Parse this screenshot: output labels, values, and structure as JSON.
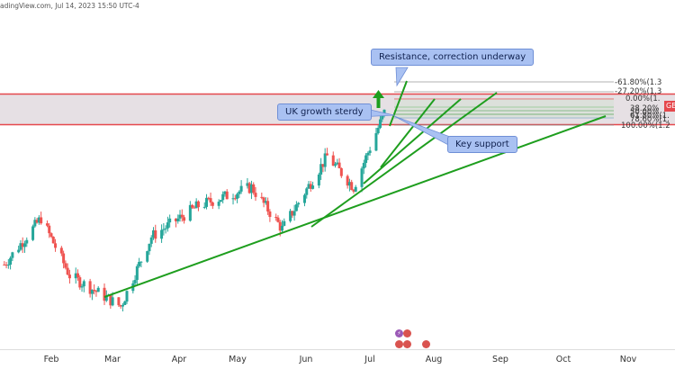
{
  "header": {
    "source_text": "adingView.com, Jul 14, 2023 15:50 UTC-4"
  },
  "annotations": {
    "resistance": "Resistance, correction underway",
    "uk_growth": "UK growth sterdy",
    "key_support": "Key support"
  },
  "price_badge": "GB",
  "events": [
    {
      "name": "lightning",
      "glyph": "⚡",
      "color": "#9b59b6"
    },
    {
      "name": "flag-uk",
      "glyph": "",
      "color": "#d9534f"
    },
    {
      "name": "flag-us",
      "glyph": "",
      "color": "#d9534f"
    },
    {
      "name": "flag-us",
      "glyph": "",
      "color": "#d9534f"
    },
    {
      "name": "flag-us",
      "glyph": "",
      "color": "#d9534f"
    }
  ],
  "colors": {
    "up": "#26a69a",
    "down": "#ef5350",
    "trendline": "#1e9e1e",
    "zone_fill": "#e6e0e4",
    "zone_border": "#e5484d",
    "callout_bg": "#a9c1f2",
    "arrow": "#1e9e1e"
  },
  "chart_data": {
    "type": "candlestick",
    "x_tick_labels": [
      "Feb",
      "Mar",
      "Apr",
      "May",
      "Jun",
      "Jul",
      "Aug",
      "Sep",
      "Oct",
      "Nov"
    ],
    "fib_levels": [
      {
        "label": "-61.80%(1.3"
      },
      {
        "label": "-27.20%(1.3"
      },
      {
        "label": "0.00%(1."
      },
      {
        "label": "38.20%"
      },
      {
        "label": "50.00%"
      },
      {
        "label": "61.80%(1."
      },
      {
        "label": "78.60%(1."
      },
      {
        "label": "100.00%(1.2"
      }
    ],
    "price_trend_keypoints": [
      {
        "date": "2023-01-09",
        "price": 1.212
      },
      {
        "date": "2023-01-27",
        "price": 1.242
      },
      {
        "date": "2023-02-10",
        "price": 1.205
      },
      {
        "date": "2023-03-07",
        "price": 1.185
      },
      {
        "date": "2023-03-22",
        "price": 1.23
      },
      {
        "date": "2023-04-14",
        "price": 1.25
      },
      {
        "date": "2023-05-10",
        "price": 1.262
      },
      {
        "date": "2023-05-25",
        "price": 1.235
      },
      {
        "date": "2023-06-16",
        "price": 1.282
      },
      {
        "date": "2023-06-29",
        "price": 1.262
      },
      {
        "date": "2023-07-14",
        "price": 1.31
      }
    ]
  }
}
